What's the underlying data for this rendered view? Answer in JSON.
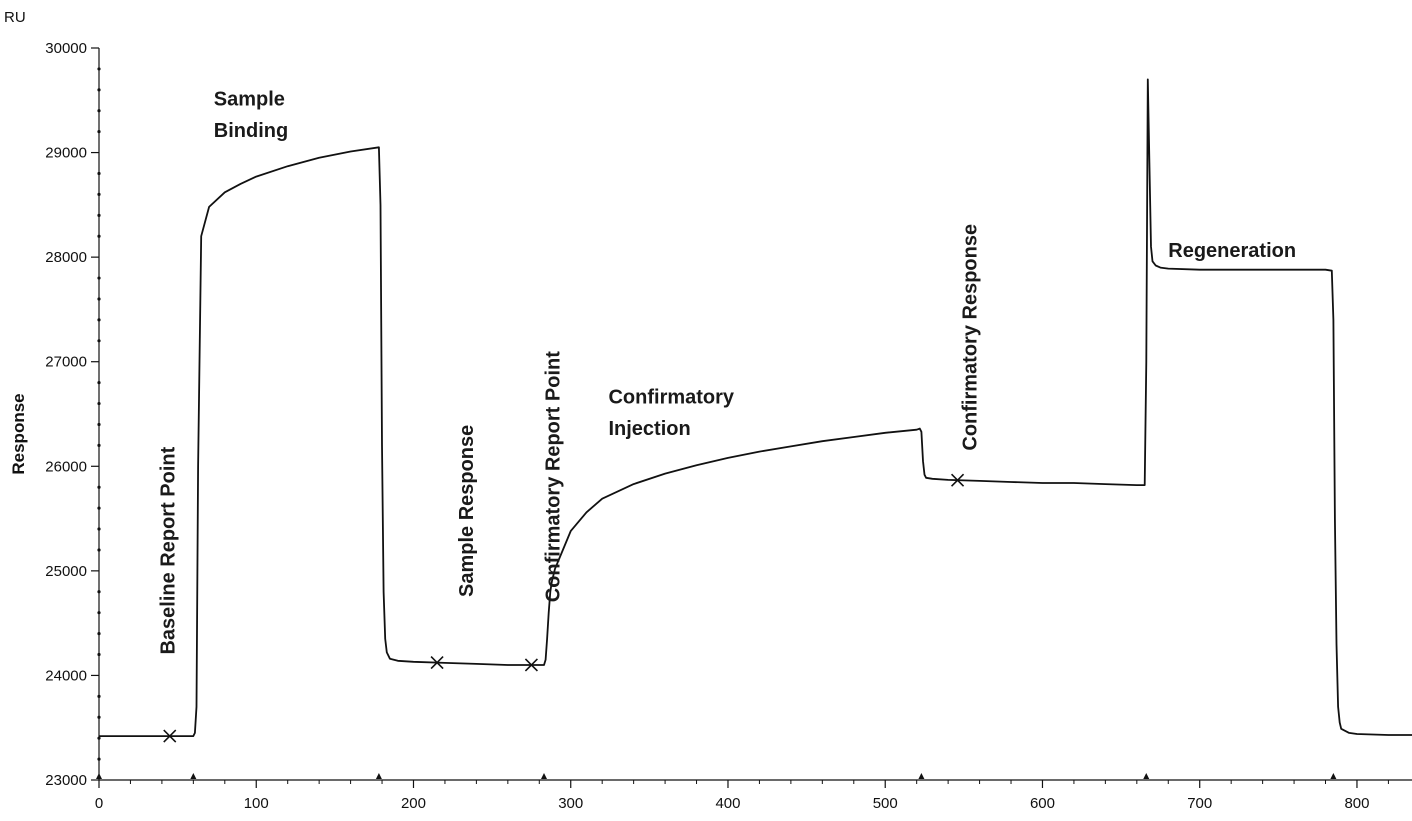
{
  "chart_data": {
    "type": "line",
    "title": "",
    "xlabel": "",
    "ylabel": "Response",
    "y_unit_label": "RU",
    "xlim": [
      0,
      835
    ],
    "ylim": [
      23000,
      30000
    ],
    "x_ticks": [
      0,
      100,
      200,
      300,
      400,
      500,
      600,
      700,
      800
    ],
    "x_tick_labels": [
      "0",
      "100",
      "200",
      "300",
      "400",
      "500",
      "600",
      "700",
      "800"
    ],
    "y_ticks": [
      23000,
      24000,
      25000,
      26000,
      27000,
      28000,
      29000,
      30000
    ],
    "y_tick_labels": [
      "23000",
      "24000",
      "25000",
      "26000",
      "27000",
      "28000",
      "29000",
      "30000"
    ],
    "grid": false,
    "line_color": "#111111",
    "series": [
      {
        "x": [
          0,
          20,
          40,
          55,
          60,
          61,
          62,
          63,
          65,
          70,
          80,
          90,
          100,
          120,
          140,
          160,
          178,
          179,
          180,
          181,
          182,
          183,
          185,
          190,
          200,
          220,
          240,
          260,
          280,
          283,
          284,
          285,
          286,
          287,
          288,
          290,
          295,
          300,
          310,
          320,
          340,
          360,
          380,
          400,
          420,
          440,
          460,
          480,
          500,
          520,
          522,
          523,
          524,
          525,
          526,
          530,
          540,
          560,
          580,
          600,
          620,
          640,
          660,
          665,
          666,
          667,
          668,
          669,
          670,
          672,
          675,
          680,
          700,
          720,
          740,
          760,
          780,
          784,
          785,
          786,
          787,
          788,
          789,
          790,
          795,
          800,
          820,
          835
        ],
        "y": [
          23420,
          23420,
          23420,
          23420,
          23420,
          23450,
          23700,
          26000,
          28200,
          28480,
          28620,
          28700,
          28770,
          28870,
          28950,
          29010,
          29050,
          28500,
          26200,
          24800,
          24350,
          24220,
          24160,
          24140,
          24130,
          24120,
          24110,
          24100,
          24100,
          24100,
          24150,
          24350,
          24600,
          24800,
          24900,
          25020,
          25200,
          25380,
          25560,
          25690,
          25830,
          25930,
          26010,
          26080,
          26140,
          26190,
          26240,
          26280,
          26320,
          26350,
          26360,
          26330,
          26050,
          25920,
          25890,
          25880,
          25870,
          25860,
          25850,
          25840,
          25840,
          25830,
          25820,
          25820,
          27000,
          29700,
          28900,
          28100,
          27960,
          27920,
          27900,
          27890,
          27880,
          27880,
          27880,
          27880,
          27880,
          27870,
          27400,
          25500,
          24300,
          23700,
          23550,
          23490,
          23450,
          23440,
          23430,
          23430
        ]
      }
    ],
    "report_markers_x": [
      45,
      215,
      275,
      546
    ],
    "event_markers_x": [
      0,
      60,
      178,
      283,
      523,
      666,
      785
    ],
    "annotations": [
      {
        "id": "baseline-report-point",
        "text": "Baseline Report Point",
        "x": 48,
        "y": 24200,
        "rotate": true
      },
      {
        "id": "sample-binding-1",
        "text": "Sample",
        "x": 73,
        "y": 29450,
        "rotate": false
      },
      {
        "id": "sample-binding-2",
        "text": "Binding",
        "x": 73,
        "y": 29150,
        "rotate": false
      },
      {
        "id": "sample-response",
        "text": "Sample Response",
        "x": 238,
        "y": 24750,
        "rotate": true
      },
      {
        "id": "confirmatory-report-point",
        "text": "Confirmatory Report Point",
        "x": 293,
        "y": 24700,
        "rotate": true
      },
      {
        "id": "confirmatory-injection-1",
        "text": "Confirmatory",
        "x": 324,
        "y": 26600,
        "rotate": false
      },
      {
        "id": "confirmatory-injection-2",
        "text": "Injection",
        "x": 324,
        "y": 26300,
        "rotate": false
      },
      {
        "id": "confirmatory-response",
        "text": "Confirmatory Response",
        "x": 558,
        "y": 26150,
        "rotate": true
      },
      {
        "id": "regeneration",
        "text": "Regeneration",
        "x": 680,
        "y": 28000,
        "rotate": false
      }
    ]
  }
}
